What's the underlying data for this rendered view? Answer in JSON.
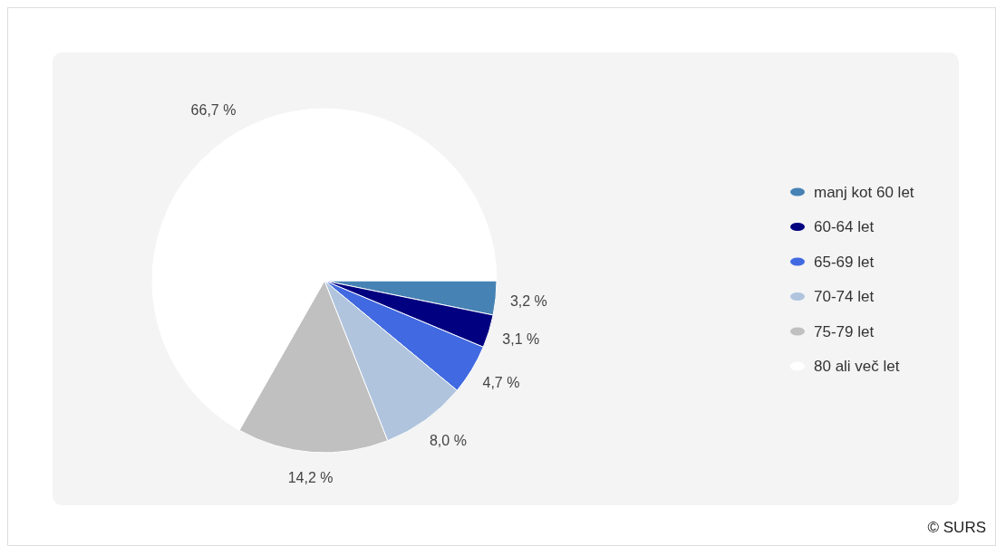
{
  "chart_data": {
    "type": "pie",
    "categories": [
      "manj kot 60 let",
      "60-64 let",
      "65-69 let",
      "70-74 let",
      "75-79 let",
      "80 ali več let"
    ],
    "values": [
      3.2,
      3.1,
      4.7,
      8.0,
      14.2,
      66.7
    ],
    "colors": [
      "#4682b4",
      "#000080",
      "#4169e1",
      "#b0c4de",
      "#c0c0c0",
      "#ffffff"
    ],
    "value_labels": [
      "3,2 %",
      "3,1 %",
      "4,7 %",
      "8,0 %",
      "14,2 %",
      "66,7 %"
    ],
    "legend": "right",
    "annotations": [
      "© SURS"
    ]
  }
}
